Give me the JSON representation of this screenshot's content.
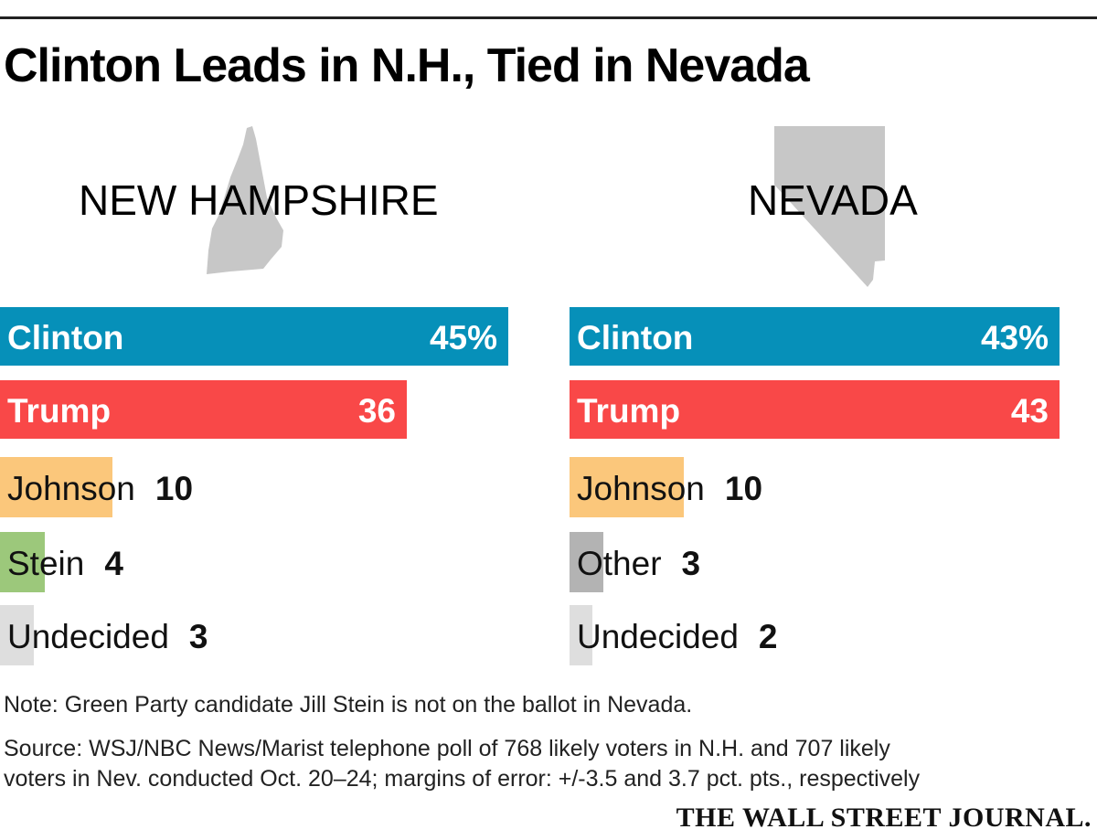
{
  "title": "Clinton Leads in N.H., Tied in Nevada",
  "colors": {
    "clinton": "#0690b9",
    "trump": "#f94848",
    "johnson": "#fbc77b",
    "stein": "#9cc87b",
    "other": "#b3b3b3",
    "undecided": "#dedede",
    "state_shape": "#c7c7c7"
  },
  "chart_data": [
    {
      "type": "bar",
      "orientation": "horizontal",
      "title": "NEW HAMPSHIRE",
      "categories": [
        "Clinton",
        "Trump",
        "Johnson",
        "Stein",
        "Undecided"
      ],
      "values": [
        45,
        36,
        10,
        4,
        3
      ],
      "value_labels": [
        "45%",
        "36",
        "10",
        "4",
        "3"
      ],
      "xlim": [
        0,
        46
      ]
    },
    {
      "type": "bar",
      "orientation": "horizontal",
      "title": "NEVADA",
      "categories": [
        "Clinton",
        "Trump",
        "Johnson",
        "Other",
        "Undecided"
      ],
      "values": [
        43,
        43,
        10,
        3,
        2
      ],
      "value_labels": [
        "43%",
        "43",
        "10",
        "3",
        "2"
      ],
      "xlim": [
        0,
        43.5
      ]
    }
  ],
  "note": "Note: Green Party candidate Jill Stein is not on the ballot in Nevada.",
  "source_line1": "Source: WSJ/NBC News/Marist telephone poll of 768 likely voters in N.H. and 707 likely",
  "source_line2": "voters in Nev. conducted Oct. 20–24; margins of error: +/-3.5 and 3.7 pct. pts., respectively",
  "logo": "THE WALL STREET JOURNAL."
}
